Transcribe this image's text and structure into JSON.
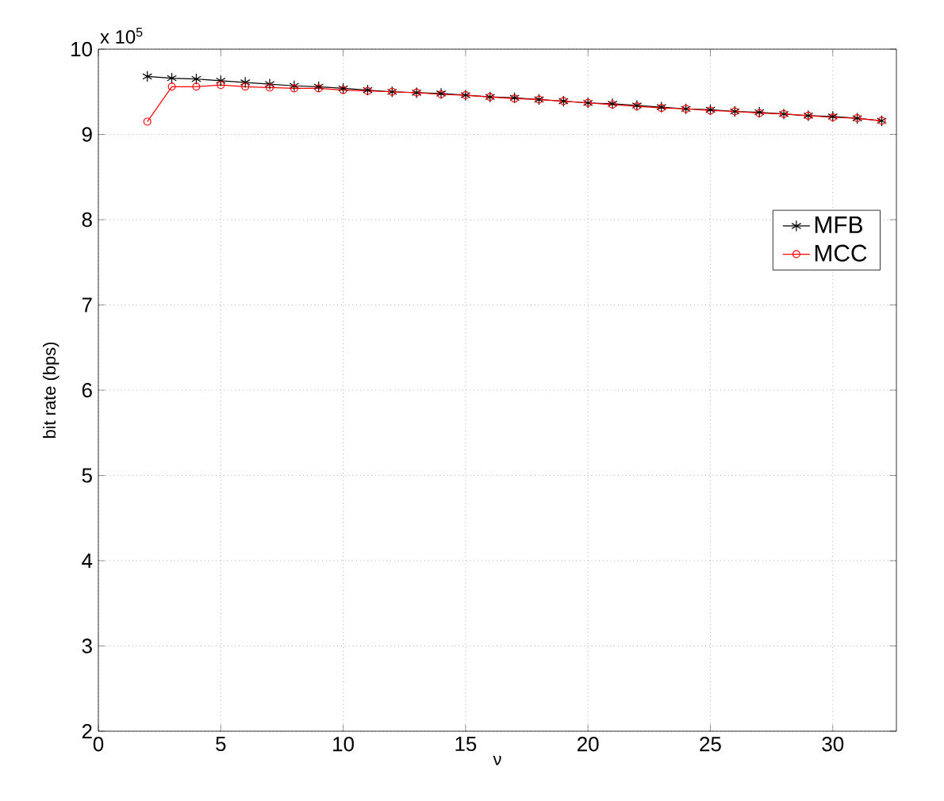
{
  "chart_data": {
    "type": "line",
    "xlabel": "ν",
    "ylabel": "bit rate (bps)",
    "annotations": [
      "x 10$^{5}$"
    ],
    "x": [
      2,
      3,
      4,
      5,
      6,
      7,
      8,
      9,
      10,
      11,
      12,
      13,
      14,
      15,
      16,
      17,
      18,
      19,
      20,
      21,
      22,
      23,
      24,
      25,
      26,
      27,
      28,
      29,
      30,
      31,
      32
    ],
    "series": [
      {
        "name": "MFB",
        "color": "#000000",
        "marker": "cross",
        "values": [
          9.68,
          9.66,
          9.65,
          9.63,
          9.61,
          9.59,
          9.57,
          9.56,
          9.54,
          9.52,
          9.5,
          9.49,
          9.48,
          9.46,
          9.44,
          9.43,
          9.41,
          9.39,
          9.37,
          9.36,
          9.34,
          9.32,
          9.3,
          9.29,
          9.27,
          9.26,
          9.24,
          9.22,
          9.21,
          9.19,
          9.16
        ]
      },
      {
        "name": "MCC",
        "color": "#ff0000",
        "marker": "circle",
        "values": [
          9.15,
          9.56,
          9.56,
          9.58,
          9.56,
          9.55,
          9.54,
          9.54,
          9.52,
          9.51,
          9.5,
          9.49,
          9.47,
          9.46,
          9.44,
          9.42,
          9.41,
          9.39,
          9.37,
          9.35,
          9.33,
          9.31,
          9.3,
          9.28,
          9.27,
          9.25,
          9.24,
          9.22,
          9.2,
          9.19,
          9.16
        ]
      }
    ],
    "xlim": [
      0,
      32.6
    ],
    "ylim": [
      2,
      10
    ],
    "xticks": [
      0,
      5,
      10,
      15,
      20,
      25,
      30
    ],
    "yticks": [
      2,
      3,
      4,
      5,
      6,
      7,
      8,
      9,
      10
    ],
    "grid": true,
    "legend": "right",
    "line_style": "solid"
  }
}
